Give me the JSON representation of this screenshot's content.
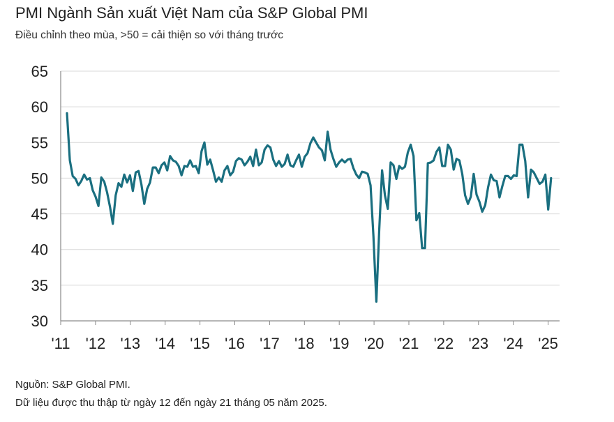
{
  "chart_data": {
    "type": "line",
    "title": "PMI Ngành Sản xuất Việt Nam của S&P Global PMI",
    "subtitle": "Điều chỉnh theo mùa, >50 = cải thiện so với tháng trước",
    "ylim": [
      30,
      65
    ],
    "yticks": [
      30,
      35,
      40,
      45,
      50,
      55,
      60,
      65
    ],
    "x_range": [
      2011.167,
      2025.417
    ],
    "xticks": [
      {
        "value": 2011,
        "label": "'11"
      },
      {
        "value": 2012,
        "label": "'12"
      },
      {
        "value": 2013,
        "label": "'13"
      },
      {
        "value": 2014,
        "label": "'14"
      },
      {
        "value": 2015,
        "label": "'15"
      },
      {
        "value": 2016,
        "label": "'16"
      },
      {
        "value": 2017,
        "label": "'17"
      },
      {
        "value": 2018,
        "label": "'18"
      },
      {
        "value": 2019,
        "label": "'19"
      },
      {
        "value": 2020,
        "label": "'20"
      },
      {
        "value": 2021,
        "label": "'21"
      },
      {
        "value": 2022,
        "label": "'22"
      },
      {
        "value": 2023,
        "label": "'23"
      },
      {
        "value": 2024,
        "label": "'24"
      },
      {
        "value": 2025,
        "label": "'25"
      }
    ],
    "grid": true,
    "line_color": "#1a6f80",
    "series": [
      {
        "name": "PMI",
        "start": "2011-03",
        "values": [
          59.1,
          52.5,
          50.3,
          49.9,
          49.0,
          49.6,
          50.5,
          49.8,
          50.0,
          48.3,
          47.4,
          46.1,
          50.1,
          49.5,
          48.0,
          46.0,
          43.6,
          47.6,
          49.3,
          48.8,
          50.5,
          49.4,
          50.4,
          48.2,
          50.8,
          51.0,
          49.1,
          46.4,
          48.5,
          49.4,
          51.5,
          51.5,
          50.7,
          51.8,
          52.2,
          51.1,
          53.1,
          52.5,
          52.3,
          51.7,
          50.4,
          51.7,
          51.6,
          52.5,
          51.6,
          51.7,
          50.7,
          53.8,
          55.0,
          51.9,
          52.6,
          51.1,
          49.5,
          50.1,
          49.5,
          51.1,
          51.7,
          50.4,
          50.9,
          52.4,
          52.8,
          52.6,
          51.8,
          52.3,
          53.0,
          51.7,
          54.0,
          51.8,
          52.2,
          54.0,
          54.6,
          54.3,
          52.6,
          51.7,
          52.4,
          51.6,
          52.0,
          53.3,
          51.8,
          51.6,
          52.5,
          53.3,
          51.6,
          53.0,
          53.5,
          54.9,
          55.7,
          55.0,
          54.3,
          53.9,
          52.5,
          56.5,
          54.0,
          52.7,
          51.6,
          52.2,
          52.6,
          52.2,
          52.6,
          52.7,
          51.4,
          50.5,
          50.0,
          50.9,
          50.8,
          50.6,
          49.0,
          41.9,
          32.7,
          42.7,
          51.1,
          47.6,
          45.7,
          52.2,
          51.8,
          49.9,
          51.7,
          51.3,
          51.6,
          53.6,
          54.7,
          53.1,
          44.1,
          45.1,
          40.2,
          40.2,
          52.1,
          52.2,
          52.5,
          53.7,
          54.3,
          51.7,
          51.7,
          54.7,
          54.0,
          51.2,
          52.7,
          52.5,
          50.6,
          47.6,
          46.4,
          47.4,
          50.6,
          47.7,
          46.7,
          45.3,
          46.2,
          48.7,
          50.5,
          49.7,
          49.6,
          47.3,
          48.9,
          50.3,
          50.3,
          49.9,
          50.4,
          50.3,
          54.7,
          54.7,
          52.4,
          47.3,
          51.2,
          50.8,
          50.0,
          49.2,
          49.5,
          50.5,
          45.6,
          50.0
        ]
      }
    ],
    "xlabel": "",
    "ylabel": ""
  },
  "footer": {
    "source": "Nguồn: S&P Global PMI.",
    "note": "Dữ liệu được thu thập từ ngày 12 đến ngày 21 tháng 05 năm 2025."
  }
}
